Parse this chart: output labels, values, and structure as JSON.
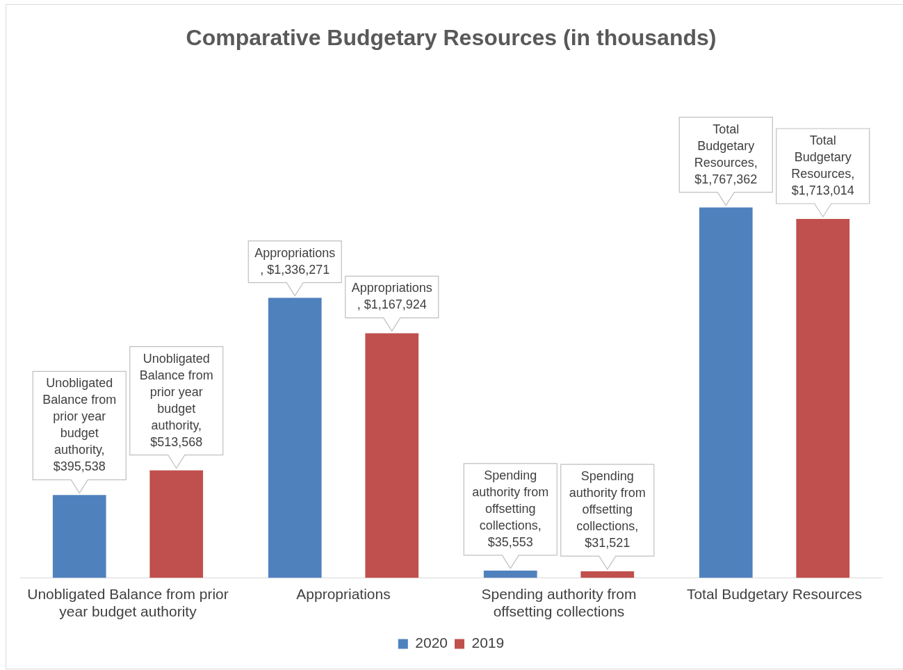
{
  "chart_data": {
    "type": "bar",
    "title": "Comparative Budgetary Resources (in thousands)",
    "categories": [
      "Unobligated Balance from prior year budget authority",
      "Appropriations",
      "Spending authority from offsetting collections",
      "Total Budgetary Resources"
    ],
    "tick_labels": "x",
    "series": [
      {
        "name": "2020",
        "color": "#4f81bd",
        "values": [
          395538,
          1336271,
          35553,
          1767362
        ],
        "value_labels": [
          "Unobligated Balance from prior year budget authority, $395,538",
          "Appropriations , $1,336,271",
          "Spending authority from offsetting collections, $35,553",
          "Total Budgetary Resources, $1,767,362"
        ]
      },
      {
        "name": "2019",
        "color": "#c0504d",
        "values": [
          513568,
          1167924,
          31521,
          1713014
        ],
        "value_labels": [
          "Unobligated Balance from prior year budget authority, $513,568",
          "Appropriations , $1,167,924",
          "Spending authority from offsetting collections, $31,521",
          "Total Budgetary Resources, $1,713,014"
        ]
      }
    ],
    "legend": "bottom",
    "grid": false
  }
}
